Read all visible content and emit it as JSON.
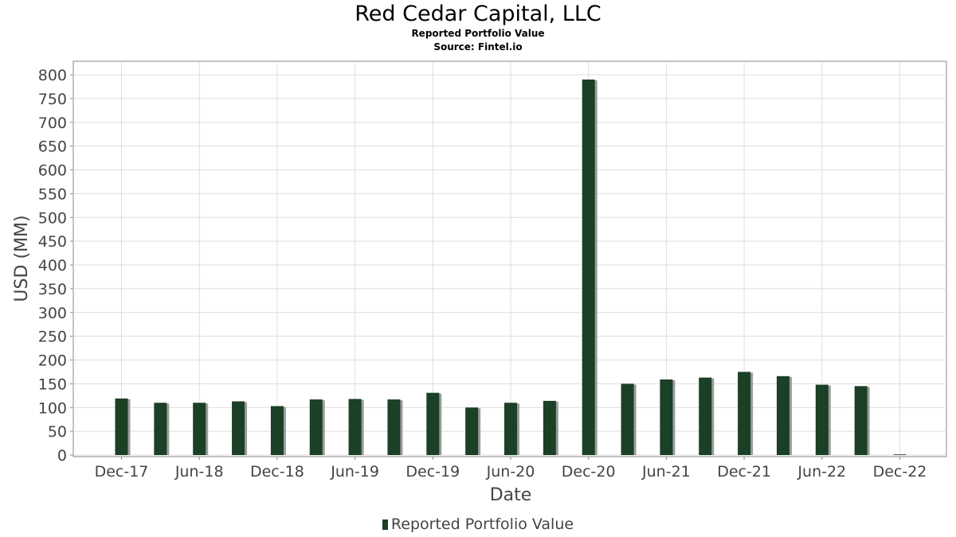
{
  "header": {
    "title": "Red Cedar Capital, LLC",
    "subtitle": "Reported Portfolio Value",
    "source": "Source: Fintel.io"
  },
  "legend": {
    "label": "Reported Portfolio Value",
    "color": "#1a4025"
  },
  "chart_data": {
    "type": "bar",
    "title": "Red Cedar Capital, LLC",
    "subtitle": "Reported Portfolio Value",
    "xlabel": "Date",
    "ylabel": "USD (MM)",
    "ylim": [
      0,
      800
    ],
    "yticks": [
      0,
      50,
      100,
      150,
      200,
      250,
      300,
      350,
      400,
      450,
      500,
      550,
      600,
      650,
      700,
      750,
      800
    ],
    "xticks": [
      "Dec-17",
      "Jun-18",
      "Dec-18",
      "Jun-19",
      "Dec-19",
      "Jun-20",
      "Dec-20",
      "Jun-21",
      "Dec-21",
      "Jun-22",
      "Dec-22"
    ],
    "grid": true,
    "legend_position": "bottom",
    "bar_color": "#1a4025",
    "shadow_color": "#8a8a8a",
    "categories": [
      "2017-12",
      "2018-03",
      "2018-06",
      "2018-09",
      "2018-12",
      "2019-03",
      "2019-06",
      "2019-09",
      "2019-12",
      "2020-03",
      "2020-06",
      "2020-09",
      "2020-12",
      "2021-03",
      "2021-06",
      "2021-09",
      "2021-12",
      "2022-03",
      "2022-06",
      "2022-09",
      "2022-12"
    ],
    "series": [
      {
        "name": "Reported Portfolio Value",
        "values": [
          119,
          110,
          110,
          113,
          103,
          117,
          118,
          117,
          131,
          100,
          110,
          114,
          790,
          150,
          159,
          163,
          175,
          166,
          148,
          145,
          0
        ]
      }
    ]
  }
}
